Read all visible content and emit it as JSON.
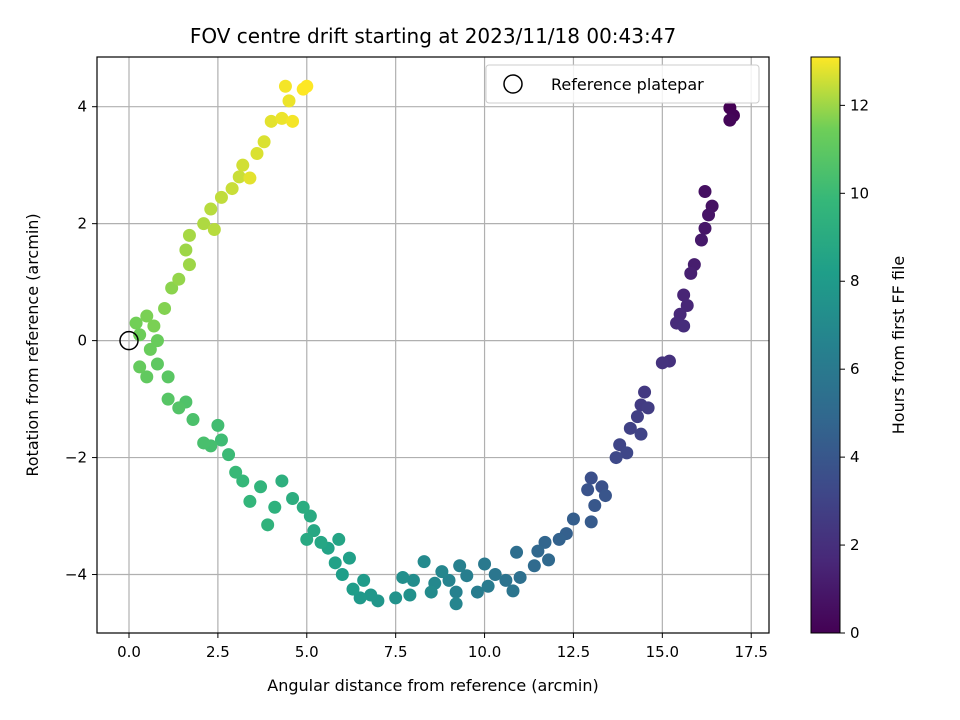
{
  "chart_data": {
    "type": "scatter",
    "title": "FOV centre drift starting at 2023/11/18 00:43:47",
    "xlabel": "Angular distance from reference (arcmin)",
    "ylabel": "Rotation from reference (arcmin)",
    "xlim": [
      -0.9,
      18.0
    ],
    "ylim": [
      -5.0,
      4.85
    ],
    "xticks": [
      0.0,
      2.5,
      5.0,
      7.5,
      10.0,
      12.5,
      15.0,
      17.5
    ],
    "xtick_labels": [
      "0.0",
      "2.5",
      "5.0",
      "7.5",
      "10.0",
      "12.5",
      "15.0",
      "17.5"
    ],
    "yticks": [
      -4,
      -2,
      0,
      2,
      4
    ],
    "ytick_labels": [
      "−4",
      "−2",
      "0",
      "2",
      "4"
    ],
    "grid": true,
    "legend": {
      "position": "top-right",
      "entries": [
        {
          "label": "Reference platepar",
          "marker": "open-circle"
        }
      ]
    },
    "reference_point": {
      "x": 0.0,
      "y": 0.0
    },
    "colormap": "viridis",
    "colorbar": {
      "label": "Hours from first FF file",
      "range": [
        0,
        13.1
      ],
      "ticks": [
        0,
        2,
        4,
        6,
        8,
        10,
        12
      ],
      "tick_labels": [
        "0",
        "2",
        "4",
        "6",
        "8",
        "10",
        "12"
      ]
    },
    "series": [
      {
        "color_by": "hours",
        "points": [
          {
            "x": 16.9,
            "y": 3.98,
            "hours": 0.0
          },
          {
            "x": 17.0,
            "y": 3.85,
            "hours": 0.1
          },
          {
            "x": 16.9,
            "y": 3.77,
            "hours": 0.2
          },
          {
            "x": 16.2,
            "y": 2.55,
            "hours": 0.6
          },
          {
            "x": 16.4,
            "y": 2.3,
            "hours": 0.7
          },
          {
            "x": 16.3,
            "y": 2.15,
            "hours": 0.8
          },
          {
            "x": 16.2,
            "y": 1.92,
            "hours": 0.9
          },
          {
            "x": 16.1,
            "y": 1.72,
            "hours": 1.0
          },
          {
            "x": 15.9,
            "y": 1.3,
            "hours": 1.2
          },
          {
            "x": 15.8,
            "y": 1.15,
            "hours": 1.3
          },
          {
            "x": 15.6,
            "y": 0.78,
            "hours": 1.5
          },
          {
            "x": 15.7,
            "y": 0.6,
            "hours": 1.6
          },
          {
            "x": 15.5,
            "y": 0.45,
            "hours": 1.7
          },
          {
            "x": 15.4,
            "y": 0.3,
            "hours": 1.8
          },
          {
            "x": 15.6,
            "y": 0.25,
            "hours": 1.9
          },
          {
            "x": 15.2,
            "y": -0.35,
            "hours": 2.1
          },
          {
            "x": 15.0,
            "y": -0.38,
            "hours": 2.2
          },
          {
            "x": 14.5,
            "y": -0.88,
            "hours": 2.5
          },
          {
            "x": 14.4,
            "y": -1.1,
            "hours": 2.6
          },
          {
            "x": 14.6,
            "y": -1.15,
            "hours": 2.7
          },
          {
            "x": 14.3,
            "y": -1.3,
            "hours": 2.8
          },
          {
            "x": 14.1,
            "y": -1.5,
            "hours": 2.9
          },
          {
            "x": 14.4,
            "y": -1.6,
            "hours": 3.0
          },
          {
            "x": 13.8,
            "y": -1.78,
            "hours": 3.1
          },
          {
            "x": 14.0,
            "y": -1.92,
            "hours": 3.2
          },
          {
            "x": 13.7,
            "y": -2.0,
            "hours": 3.3
          },
          {
            "x": 13.0,
            "y": -2.35,
            "hours": 3.6
          },
          {
            "x": 13.3,
            "y": -2.5,
            "hours": 3.7
          },
          {
            "x": 12.9,
            "y": -2.55,
            "hours": 3.8
          },
          {
            "x": 13.4,
            "y": -2.65,
            "hours": 3.9
          },
          {
            "x": 13.1,
            "y": -2.82,
            "hours": 4.0
          },
          {
            "x": 13.0,
            "y": -3.1,
            "hours": 4.2
          },
          {
            "x": 12.5,
            "y": -3.05,
            "hours": 4.4
          },
          {
            "x": 12.3,
            "y": -3.3,
            "hours": 4.5
          },
          {
            "x": 12.1,
            "y": -3.4,
            "hours": 4.6
          },
          {
            "x": 11.7,
            "y": -3.45,
            "hours": 4.8
          },
          {
            "x": 11.5,
            "y": -3.6,
            "hours": 4.9
          },
          {
            "x": 11.8,
            "y": -3.75,
            "hours": 5.0
          },
          {
            "x": 11.4,
            "y": -3.85,
            "hours": 5.1
          },
          {
            "x": 10.9,
            "y": -3.62,
            "hours": 5.3
          },
          {
            "x": 11.0,
            "y": -4.05,
            "hours": 5.4
          },
          {
            "x": 10.6,
            "y": -4.1,
            "hours": 5.6
          },
          {
            "x": 10.8,
            "y": -4.28,
            "hours": 5.7
          },
          {
            "x": 10.3,
            "y": -4.0,
            "hours": 5.8
          },
          {
            "x": 10.0,
            "y": -3.82,
            "hours": 6.0
          },
          {
            "x": 10.1,
            "y": -4.2,
            "hours": 6.1
          },
          {
            "x": 9.8,
            "y": -4.3,
            "hours": 6.2
          },
          {
            "x": 9.5,
            "y": -4.02,
            "hours": 6.3
          },
          {
            "x": 9.3,
            "y": -3.85,
            "hours": 6.4
          },
          {
            "x": 9.2,
            "y": -4.3,
            "hours": 6.5
          },
          {
            "x": 9.0,
            "y": -4.1,
            "hours": 6.6
          },
          {
            "x": 9.2,
            "y": -4.5,
            "hours": 6.7
          },
          {
            "x": 8.8,
            "y": -3.95,
            "hours": 6.8
          },
          {
            "x": 8.6,
            "y": -4.15,
            "hours": 6.9
          },
          {
            "x": 8.3,
            "y": -3.78,
            "hours": 7.0
          },
          {
            "x": 8.5,
            "y": -4.3,
            "hours": 7.1
          },
          {
            "x": 8.0,
            "y": -4.1,
            "hours": 7.2
          },
          {
            "x": 7.7,
            "y": -4.05,
            "hours": 7.3
          },
          {
            "x": 7.9,
            "y": -4.35,
            "hours": 7.4
          },
          {
            "x": 7.5,
            "y": -4.4,
            "hours": 7.5
          },
          {
            "x": 7.0,
            "y": -4.45,
            "hours": 7.7
          },
          {
            "x": 6.8,
            "y": -4.35,
            "hours": 7.8
          },
          {
            "x": 6.5,
            "y": -4.4,
            "hours": 7.9
          },
          {
            "x": 6.6,
            "y": -4.1,
            "hours": 8.0
          },
          {
            "x": 6.3,
            "y": -4.25,
            "hours": 8.1
          },
          {
            "x": 6.0,
            "y": -4.0,
            "hours": 8.2
          },
          {
            "x": 6.2,
            "y": -3.72,
            "hours": 8.3
          },
          {
            "x": 5.8,
            "y": -3.8,
            "hours": 8.4
          },
          {
            "x": 5.6,
            "y": -3.55,
            "hours": 8.5
          },
          {
            "x": 5.9,
            "y": -3.4,
            "hours": 8.6
          },
          {
            "x": 5.4,
            "y": -3.45,
            "hours": 8.7
          },
          {
            "x": 5.2,
            "y": -3.25,
            "hours": 8.8
          },
          {
            "x": 5.0,
            "y": -3.4,
            "hours": 8.9
          },
          {
            "x": 5.1,
            "y": -3.0,
            "hours": 9.0
          },
          {
            "x": 4.9,
            "y": -2.85,
            "hours": 9.1
          },
          {
            "x": 4.6,
            "y": -2.7,
            "hours": 9.2
          },
          {
            "x": 4.3,
            "y": -2.4,
            "hours": 9.3
          },
          {
            "x": 4.1,
            "y": -2.85,
            "hours": 9.4
          },
          {
            "x": 3.9,
            "y": -3.15,
            "hours": 9.5
          },
          {
            "x": 3.7,
            "y": -2.5,
            "hours": 9.6
          },
          {
            "x": 3.4,
            "y": -2.75,
            "hours": 9.7
          },
          {
            "x": 3.2,
            "y": -2.4,
            "hours": 9.8
          },
          {
            "x": 3.0,
            "y": -2.25,
            "hours": 9.9
          },
          {
            "x": 2.8,
            "y": -1.95,
            "hours": 10.0
          },
          {
            "x": 2.6,
            "y": -1.7,
            "hours": 10.1
          },
          {
            "x": 2.5,
            "y": -1.45,
            "hours": 10.2
          },
          {
            "x": 2.3,
            "y": -1.8,
            "hours": 10.3
          },
          {
            "x": 2.1,
            "y": -1.75,
            "hours": 10.4
          },
          {
            "x": 1.8,
            "y": -1.35,
            "hours": 10.5
          },
          {
            "x": 1.6,
            "y": -1.05,
            "hours": 10.6
          },
          {
            "x": 1.4,
            "y": -1.15,
            "hours": 10.7
          },
          {
            "x": 1.1,
            "y": -1.0,
            "hours": 10.8
          },
          {
            "x": 1.1,
            "y": -0.62,
            "hours": 10.9
          },
          {
            "x": 0.8,
            "y": -0.4,
            "hours": 11.0
          },
          {
            "x": 0.5,
            "y": -0.62,
            "hours": 11.1
          },
          {
            "x": 0.3,
            "y": -0.45,
            "hours": 11.2
          },
          {
            "x": 0.6,
            "y": -0.15,
            "hours": 11.3
          },
          {
            "x": 0.8,
            "y": 0.0,
            "hours": 11.3
          },
          {
            "x": 0.3,
            "y": 0.1,
            "hours": 11.4
          },
          {
            "x": 0.2,
            "y": 0.3,
            "hours": 11.5
          },
          {
            "x": 0.5,
            "y": 0.42,
            "hours": 11.6
          },
          {
            "x": 0.7,
            "y": 0.25,
            "hours": 11.6
          },
          {
            "x": 1.0,
            "y": 0.55,
            "hours": 11.7
          },
          {
            "x": 1.2,
            "y": 0.9,
            "hours": 11.8
          },
          {
            "x": 1.4,
            "y": 1.05,
            "hours": 11.9
          },
          {
            "x": 1.7,
            "y": 1.3,
            "hours": 12.0
          },
          {
            "x": 1.6,
            "y": 1.55,
            "hours": 12.0
          },
          {
            "x": 1.7,
            "y": 1.8,
            "hours": 12.1
          },
          {
            "x": 2.1,
            "y": 2.0,
            "hours": 12.2
          },
          {
            "x": 2.3,
            "y": 2.25,
            "hours": 12.3
          },
          {
            "x": 2.4,
            "y": 1.9,
            "hours": 12.3
          },
          {
            "x": 2.6,
            "y": 2.45,
            "hours": 12.4
          },
          {
            "x": 2.9,
            "y": 2.6,
            "hours": 12.5
          },
          {
            "x": 3.1,
            "y": 2.8,
            "hours": 12.5
          },
          {
            "x": 3.2,
            "y": 3.0,
            "hours": 12.6
          },
          {
            "x": 3.6,
            "y": 3.2,
            "hours": 12.7
          },
          {
            "x": 3.8,
            "y": 3.4,
            "hours": 12.7
          },
          {
            "x": 3.4,
            "y": 2.78,
            "hours": 12.8
          },
          {
            "x": 4.0,
            "y": 3.75,
            "hours": 12.8
          },
          {
            "x": 4.3,
            "y": 3.8,
            "hours": 12.9
          },
          {
            "x": 4.5,
            "y": 4.1,
            "hours": 12.9
          },
          {
            "x": 4.6,
            "y": 3.75,
            "hours": 13.0
          },
          {
            "x": 4.4,
            "y": 4.35,
            "hours": 13.0
          },
          {
            "x": 4.9,
            "y": 4.3,
            "hours": 13.1
          },
          {
            "x": 5.0,
            "y": 4.35,
            "hours": 13.1
          }
        ]
      }
    ]
  }
}
